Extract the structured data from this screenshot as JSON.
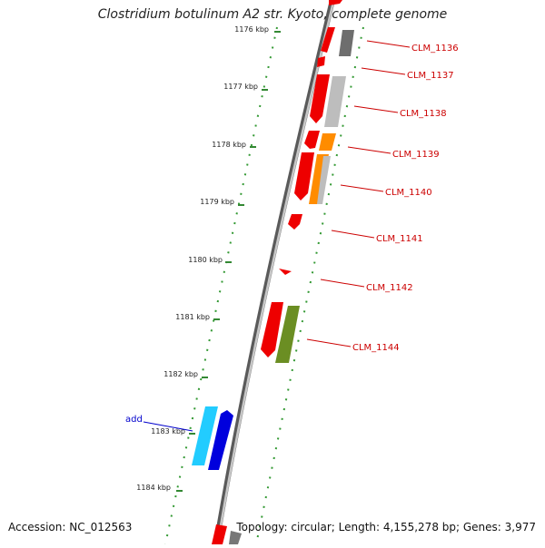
{
  "title": "Clostridium botulinum A2 str. Kyoto, complete genome",
  "footer": {
    "accession": "Accession: NC_012563",
    "summary": "Topology: circular; Length: 4,155,278 bp; Genes: 3,977"
  },
  "colors": {
    "gene_label": "#cc0000",
    "feature_label": "#0000cc",
    "tick": "#338833",
    "backbone": "#8a8a8a",
    "red_gene": "#ee0000",
    "gray_gene": "#bbbbbb",
    "dark_gray_gene": "#777777",
    "orange_gene": "#ff8c00",
    "olive_gene": "#6b8e23",
    "cyan_gene": "#22ccff",
    "blue_gene": "#0000dd"
  },
  "scale": {
    "unit": "kbp",
    "labels": [
      "1176 kbp",
      "1177 kbp",
      "1178 kbp",
      "1179 kbp",
      "1180 kbp",
      "1181 kbp",
      "1182 kbp",
      "1183 kbp",
      "1184 kbp"
    ]
  },
  "gene_labels": [
    "CLM_1136",
    "CLM_1137",
    "CLM_1138",
    "CLM_1139",
    "CLM_1140",
    "CLM_1141",
    "CLM_1142",
    "CLM_1144"
  ],
  "feature_labels": [
    "add"
  ]
}
